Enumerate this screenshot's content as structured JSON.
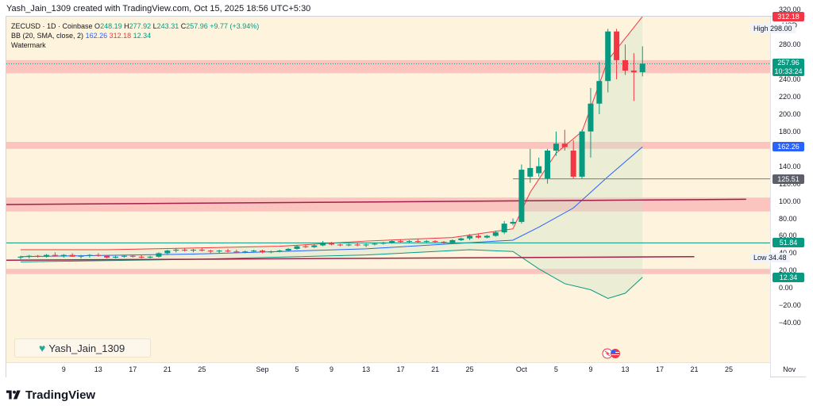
{
  "header": {
    "credit": "Yash_Jain_1309 created with TradingView.com, Oct 15, 2025 18:56 UTC+5:30"
  },
  "legend": {
    "symbol": "ZECUSD · 1D · Coinbase",
    "o_label": "O",
    "o_value": "248.19",
    "h_label": "H",
    "h_value": "277.92",
    "l_label": "L",
    "l_value": "243.31",
    "c_label": "C",
    "c_value": "257.96",
    "change": "+9.77 (+3.94%)",
    "bb_label": "BB (20, SMA, close, 2)",
    "bb_middle": "162.26",
    "bb_upper": "312.18",
    "bb_lower": "12.34",
    "watermark_label": "Watermark"
  },
  "price_axis": {
    "currency": "USD",
    "ticks": [
      "320.00",
      "280.00",
      "260.00",
      "240.00",
      "220.00",
      "200.00",
      "180.00",
      "160.00",
      "140.00",
      "120.00",
      "100.00",
      "80.00",
      "60.00",
      "40.00",
      "20.00",
      "0.00",
      "−20.00",
      "−40.00"
    ],
    "high_label": "High",
    "high_value": "298.00",
    "low_label": "Low",
    "low_value": "34.48",
    "badges": [
      {
        "value": "312.18",
        "color": "#f23645"
      },
      {
        "value": "162.26",
        "color": "#2962ff"
      },
      {
        "value": "125.51",
        "color": "#5d606b"
      },
      {
        "value": "51.84",
        "color": "#089981"
      },
      {
        "value": "12.34",
        "color": "#089981"
      }
    ],
    "last_price": "257.96",
    "countdown": "10:33:24"
  },
  "time_axis": {
    "ticks": [
      "9",
      "13",
      "17",
      "21",
      "25",
      "Sep",
      "5",
      "9",
      "13",
      "17",
      "21",
      "25",
      "Oct",
      "5",
      "9",
      "13",
      "17",
      "21",
      "25",
      "Nov"
    ]
  },
  "watermark": "Yash_Jain_1309",
  "brand": "TradingView",
  "colors": {
    "up": "#089981",
    "down": "#f23645",
    "bb_mid": "#2962ff",
    "bb_up": "#f23645",
    "bb_low": "#089981",
    "zone": "#f9b4b4",
    "bg": "#fef3dc"
  },
  "chart_data": {
    "type": "candlestick",
    "symbol": "ZECUSD",
    "interval": "1D",
    "ylim": [
      -45,
      330
    ],
    "x_ticks": [
      "9",
      "13",
      "17",
      "21",
      "25",
      "Sep",
      "5",
      "9",
      "13",
      "17",
      "21",
      "25",
      "Oct",
      "5",
      "9",
      "13",
      "17",
      "21",
      "25",
      "Nov"
    ],
    "candles": [
      {
        "date": "Aug 4",
        "o": 35,
        "h": 37,
        "l": 33,
        "c": 36
      },
      {
        "date": "Aug 5",
        "o": 36,
        "h": 38,
        "l": 34,
        "c": 37
      },
      {
        "date": "Aug 6",
        "o": 37,
        "h": 38,
        "l": 35,
        "c": 36
      },
      {
        "date": "Aug 7",
        "o": 36,
        "h": 39,
        "l": 35,
        "c": 38
      },
      {
        "date": "Aug 8",
        "o": 38,
        "h": 41,
        "l": 36,
        "c": 37
      },
      {
        "date": "Aug 9",
        "o": 37,
        "h": 39,
        "l": 35,
        "c": 38
      },
      {
        "date": "Aug 10",
        "o": 38,
        "h": 40,
        "l": 36,
        "c": 36
      },
      {
        "date": "Aug 11",
        "o": 36,
        "h": 38,
        "l": 34,
        "c": 37
      },
      {
        "date": "Aug 12",
        "o": 37,
        "h": 39,
        "l": 35,
        "c": 38
      },
      {
        "date": "Aug 13",
        "o": 38,
        "h": 40,
        "l": 36,
        "c": 37
      },
      {
        "date": "Aug 14",
        "o": 37,
        "h": 38,
        "l": 34,
        "c": 35
      },
      {
        "date": "Aug 15",
        "o": 35,
        "h": 37,
        "l": 34,
        "c": 36
      },
      {
        "date": "Aug 16",
        "o": 36,
        "h": 38,
        "l": 35,
        "c": 37
      },
      {
        "date": "Aug 17",
        "o": 37,
        "h": 38,
        "l": 35,
        "c": 36
      },
      {
        "date": "Aug 18",
        "o": 36,
        "h": 38,
        "l": 34,
        "c": 35
      },
      {
        "date": "Aug 19",
        "o": 35,
        "h": 37,
        "l": 34,
        "c": 36
      },
      {
        "date": "Aug 20",
        "o": 36,
        "h": 41,
        "l": 35,
        "c": 40
      },
      {
        "date": "Aug 21",
        "o": 40,
        "h": 44,
        "l": 38,
        "c": 43
      },
      {
        "date": "Aug 22",
        "o": 43,
        "h": 46,
        "l": 41,
        "c": 44
      },
      {
        "date": "Aug 23",
        "o": 44,
        "h": 46,
        "l": 42,
        "c": 43
      },
      {
        "date": "Aug 24",
        "o": 43,
        "h": 45,
        "l": 41,
        "c": 44
      },
      {
        "date": "Aug 25",
        "o": 44,
        "h": 46,
        "l": 42,
        "c": 43
      },
      {
        "date": "Aug 26",
        "o": 43,
        "h": 44,
        "l": 40,
        "c": 42
      },
      {
        "date": "Aug 27",
        "o": 42,
        "h": 44,
        "l": 40,
        "c": 43
      },
      {
        "date": "Aug 28",
        "o": 43,
        "h": 45,
        "l": 41,
        "c": 42
      },
      {
        "date": "Aug 29",
        "o": 42,
        "h": 44,
        "l": 40,
        "c": 41
      },
      {
        "date": "Aug 30",
        "o": 41,
        "h": 43,
        "l": 40,
        "c": 42
      },
      {
        "date": "Aug 31",
        "o": 42,
        "h": 44,
        "l": 41,
        "c": 43
      },
      {
        "date": "Sep 1",
        "o": 43,
        "h": 44,
        "l": 40,
        "c": 41
      },
      {
        "date": "Sep 2",
        "o": 41,
        "h": 43,
        "l": 40,
        "c": 42
      },
      {
        "date": "Sep 3",
        "o": 42,
        "h": 44,
        "l": 41,
        "c": 43
      },
      {
        "date": "Sep 4",
        "o": 43,
        "h": 46,
        "l": 42,
        "c": 45
      },
      {
        "date": "Sep 5",
        "o": 45,
        "h": 49,
        "l": 44,
        "c": 48
      },
      {
        "date": "Sep 6",
        "o": 48,
        "h": 50,
        "l": 46,
        "c": 47
      },
      {
        "date": "Sep 7",
        "o": 47,
        "h": 50,
        "l": 46,
        "c": 49
      },
      {
        "date": "Sep 8",
        "o": 49,
        "h": 54,
        "l": 48,
        "c": 52
      },
      {
        "date": "Sep 9",
        "o": 52,
        "h": 53,
        "l": 49,
        "c": 50
      },
      {
        "date": "Sep 10",
        "o": 50,
        "h": 51,
        "l": 48,
        "c": 49
      },
      {
        "date": "Sep 11",
        "o": 49,
        "h": 51,
        "l": 48,
        "c": 50
      },
      {
        "date": "Sep 12",
        "o": 50,
        "h": 52,
        "l": 48,
        "c": 49
      },
      {
        "date": "Sep 13",
        "o": 49,
        "h": 51,
        "l": 47,
        "c": 50
      },
      {
        "date": "Sep 14",
        "o": 50,
        "h": 52,
        "l": 49,
        "c": 51
      },
      {
        "date": "Sep 15",
        "o": 51,
        "h": 53,
        "l": 50,
        "c": 52
      },
      {
        "date": "Sep 16",
        "o": 52,
        "h": 55,
        "l": 51,
        "c": 54
      },
      {
        "date": "Sep 17",
        "o": 54,
        "h": 56,
        "l": 52,
        "c": 53
      },
      {
        "date": "Sep 18",
        "o": 53,
        "h": 55,
        "l": 52,
        "c": 54
      },
      {
        "date": "Sep 19",
        "o": 54,
        "h": 56,
        "l": 52,
        "c": 53
      },
      {
        "date": "Sep 20",
        "o": 53,
        "h": 55,
        "l": 52,
        "c": 54
      },
      {
        "date": "Sep 21",
        "o": 54,
        "h": 55,
        "l": 52,
        "c": 53
      },
      {
        "date": "Sep 22",
        "o": 53,
        "h": 54,
        "l": 51,
        "c": 52
      },
      {
        "date": "Sep 23",
        "o": 52,
        "h": 56,
        "l": 51,
        "c": 55
      },
      {
        "date": "Sep 24",
        "o": 55,
        "h": 58,
        "l": 54,
        "c": 57
      },
      {
        "date": "Sep 25",
        "o": 57,
        "h": 62,
        "l": 55,
        "c": 60
      },
      {
        "date": "Sep 26",
        "o": 60,
        "h": 62,
        "l": 57,
        "c": 58
      },
      {
        "date": "Sep 27",
        "o": 58,
        "h": 61,
        "l": 57,
        "c": 60
      },
      {
        "date": "Sep 28",
        "o": 60,
        "h": 66,
        "l": 59,
        "c": 64
      },
      {
        "date": "Sep 29",
        "o": 64,
        "h": 77,
        "l": 62,
        "c": 74
      },
      {
        "date": "Sep 30",
        "o": 74,
        "h": 80,
        "l": 72,
        "c": 76
      },
      {
        "date": "Oct 1",
        "o": 76,
        "h": 142,
        "l": 74,
        "c": 136
      },
      {
        "date": "Oct 2",
        "o": 128,
        "h": 160,
        "l": 121,
        "c": 138
      },
      {
        "date": "Oct 3",
        "o": 132,
        "h": 150,
        "l": 128,
        "c": 140
      },
      {
        "date": "Oct 4",
        "o": 126,
        "h": 160,
        "l": 120,
        "c": 158
      },
      {
        "date": "Oct 5",
        "o": 158,
        "h": 180,
        "l": 152,
        "c": 166
      },
      {
        "date": "Oct 6",
        "o": 166,
        "h": 182,
        "l": 158,
        "c": 162
      },
      {
        "date": "Oct 7",
        "o": 158,
        "h": 170,
        "l": 126,
        "c": 128
      },
      {
        "date": "Oct 8",
        "o": 128,
        "h": 182,
        "l": 126,
        "c": 180
      },
      {
        "date": "Oct 9",
        "o": 180,
        "h": 230,
        "l": 150,
        "c": 212
      },
      {
        "date": "Oct 10",
        "o": 212,
        "h": 260,
        "l": 200,
        "c": 238
      },
      {
        "date": "Oct 11",
        "o": 238,
        "h": 298,
        "l": 225,
        "c": 295
      },
      {
        "date": "Oct 12",
        "o": 295,
        "h": 298,
        "l": 240,
        "c": 262
      },
      {
        "date": "Oct 13",
        "o": 262,
        "h": 280,
        "l": 245,
        "c": 250
      },
      {
        "date": "Oct 14",
        "o": 250,
        "h": 270,
        "l": 215,
        "c": 248
      },
      {
        "date": "Oct 15",
        "o": 248.19,
        "h": 277.92,
        "l": 243.31,
        "c": 257.96
      }
    ],
    "bb_upper_line": [
      {
        "date": "Aug 4",
        "v": 44
      },
      {
        "date": "Aug 14",
        "v": 44
      },
      {
        "date": "Aug 24",
        "v": 46
      },
      {
        "date": "Sep 3",
        "v": 48
      },
      {
        "date": "Sep 13",
        "v": 54
      },
      {
        "date": "Sep 23",
        "v": 58
      },
      {
        "date": "Sep 30",
        "v": 68
      },
      {
        "date": "Oct 2",
        "v": 110
      },
      {
        "date": "Oct 5",
        "v": 155
      },
      {
        "date": "Oct 8",
        "v": 180
      },
      {
        "date": "Oct 11",
        "v": 262
      },
      {
        "date": "Oct 15",
        "v": 312.18
      }
    ],
    "bb_middle_line": [
      {
        "date": "Aug 4",
        "v": 36
      },
      {
        "date": "Aug 24",
        "v": 39
      },
      {
        "date": "Sep 13",
        "v": 45
      },
      {
        "date": "Sep 30",
        "v": 55
      },
      {
        "date": "Oct 3",
        "v": 70
      },
      {
        "date": "Oct 7",
        "v": 92
      },
      {
        "date": "Oct 11",
        "v": 128
      },
      {
        "date": "Oct 15",
        "v": 162.26
      }
    ],
    "bb_lower_line": [
      {
        "date": "Aug 4",
        "v": 30
      },
      {
        "date": "Aug 24",
        "v": 33
      },
      {
        "date": "Sep 13",
        "v": 38
      },
      {
        "date": "Sep 25",
        "v": 44
      },
      {
        "date": "Sep 30",
        "v": 42
      },
      {
        "date": "Oct 3",
        "v": 22
      },
      {
        "date": "Oct 6",
        "v": 5
      },
      {
        "date": "Oct 9",
        "v": -2
      },
      {
        "date": "Oct 11",
        "v": -12
      },
      {
        "date": "Oct 13",
        "v": -6
      },
      {
        "date": "Oct 15",
        "v": 12.34
      }
    ],
    "zones": [
      {
        "from": 247,
        "to": 262
      },
      {
        "from": 160,
        "to": 168
      },
      {
        "from": 88,
        "to": 104
      },
      {
        "from": 16,
        "to": 22
      }
    ],
    "horizontal_lines": [
      {
        "value": 125.51,
        "color": "#787b86"
      },
      {
        "value": 51.84,
        "color": "#089981"
      }
    ],
    "trend_lines": [
      {
        "from_date": "Aug 4",
        "from_v": 96,
        "to_date": "Oct 27",
        "to_v": 102,
        "color": "#a3204a"
      },
      {
        "from_date": "Aug 4",
        "from_v": 32,
        "to_date": "Oct 21",
        "to_v": 36,
        "color": "#a3204a"
      }
    ]
  }
}
